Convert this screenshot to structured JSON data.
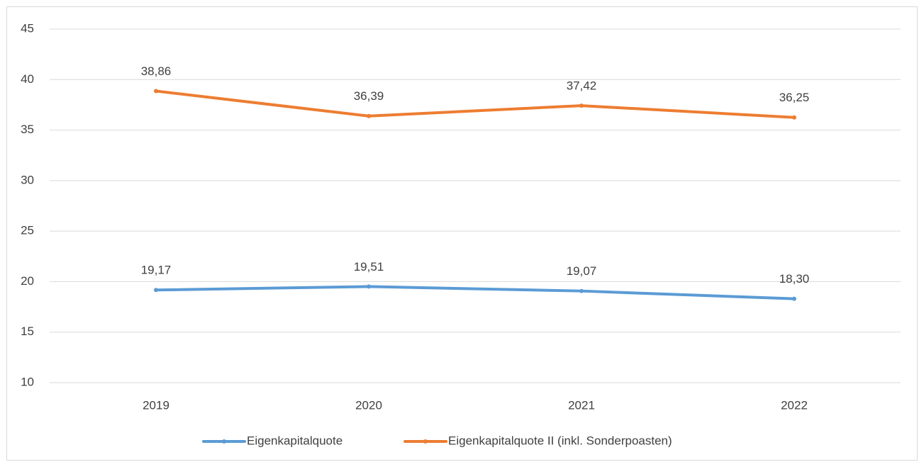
{
  "chart_data": {
    "type": "line",
    "categories": [
      "2019",
      "2020",
      "2021",
      "2022"
    ],
    "series": [
      {
        "name": "Eigenkapitalquote",
        "color": "#5b9bd5",
        "values": [
          19.17,
          19.51,
          19.07,
          18.3
        ],
        "value_labels": [
          "19,17",
          "19,51",
          "19,07",
          "18,30"
        ]
      },
      {
        "name": "Eigenkapitalquote II (inkl. Sonderpoasten)",
        "color": "#ed7d31",
        "values": [
          38.86,
          36.39,
          37.42,
          36.25
        ],
        "value_labels": [
          "38,86",
          "36,39",
          "37,42",
          "36,25"
        ]
      }
    ],
    "ylim": [
      10,
      45
    ],
    "yticks": [
      10,
      15,
      20,
      25,
      30,
      35,
      40,
      45
    ],
    "grid": true,
    "legend": "bottom"
  }
}
